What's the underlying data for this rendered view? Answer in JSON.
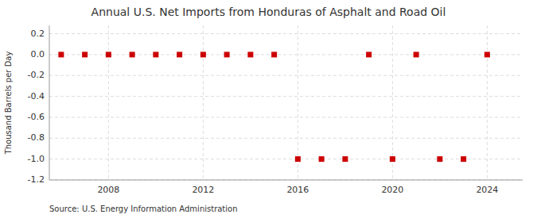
{
  "chart_data": {
    "type": "scatter",
    "title": "Annual U.S. Net Imports from Honduras of Asphalt and Road Oil",
    "ylabel": "Thousand Barrels per Day",
    "source": "Source: U.S. Energy Information Administration",
    "x": [
      2006,
      2007,
      2008,
      2009,
      2010,
      2011,
      2012,
      2013,
      2014,
      2015,
      2016,
      2017,
      2018,
      2019,
      2020,
      2021,
      2022,
      2023,
      2024
    ],
    "values": [
      0,
      0,
      0,
      0,
      0,
      0,
      0,
      0,
      0,
      0,
      -1,
      -1,
      -1,
      0,
      -1,
      0,
      -1,
      -1,
      0
    ],
    "color": "#cc0000",
    "marker": "square",
    "xlim": [
      2005.5,
      2025.5
    ],
    "xticks": [
      2008,
      2012,
      2016,
      2020,
      2024
    ],
    "ylim": [
      -1.2,
      0.28
    ],
    "yticks": [
      0.2,
      {
        "value": 0.0,
        "label": "0.0"
      },
      -0.2,
      -0.4,
      -0.6,
      -0.8,
      {
        "value": -1.0,
        "label": "-1.0"
      },
      -1.2
    ],
    "grid": true
  }
}
